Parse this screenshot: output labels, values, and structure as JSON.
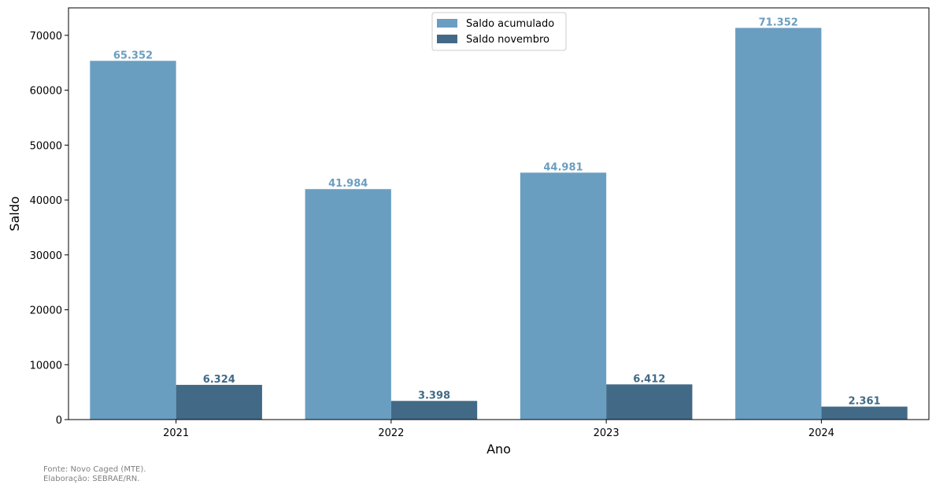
{
  "chart_data": {
    "type": "bar",
    "title": "",
    "xlabel": "Ano",
    "ylabel": "Saldo",
    "categories": [
      "2021",
      "2022",
      "2023",
      "2024"
    ],
    "ylim": [
      0,
      75000
    ],
    "yticks": [
      0,
      10000,
      20000,
      30000,
      40000,
      50000,
      60000,
      70000
    ],
    "grid": false,
    "legend_position": "top-center",
    "series": [
      {
        "name": "Saldo acumulado",
        "color": "#6a9ec0",
        "values": [
          65352,
          41984,
          44981,
          71352
        ],
        "labels": [
          "65.352",
          "41.984",
          "44.981",
          "71.352"
        ]
      },
      {
        "name": "Saldo novembro",
        "color": "#426a87",
        "values": [
          6324,
          3398,
          6412,
          2361
        ],
        "labels": [
          "6.324",
          "3.398",
          "6.412",
          "2.361"
        ]
      }
    ]
  },
  "footer": {
    "source": "Fonte: Novo Caged (MTE).",
    "credit": "Elaboração: SEBRAE/RN."
  }
}
